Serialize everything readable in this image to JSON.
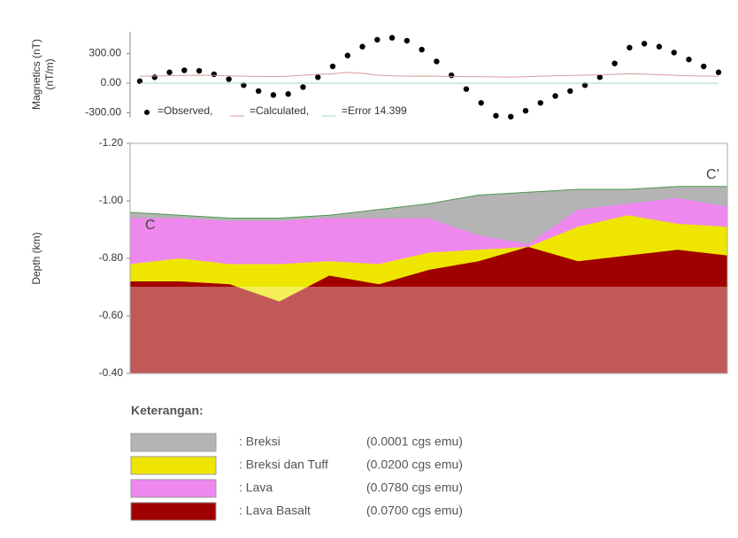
{
  "chart_data": [
    {
      "type": "line",
      "y_label_lines": [
        "Magnetics (nT)",
        "(nT/m)"
      ],
      "ylim": [
        -350,
        520
      ],
      "yticks": [
        {
          "value": 300,
          "label": "300.00"
        },
        {
          "value": 0,
          "label": "0.00"
        },
        {
          "value": -300,
          "label": "-300.00"
        }
      ],
      "series": [
        {
          "name": "=Observed,",
          "mode": "markers",
          "color": "#000000",
          "values": [
            20,
            60,
            110,
            130,
            125,
            90,
            40,
            -20,
            -80,
            -120,
            -110,
            -40,
            60,
            170,
            280,
            370,
            440,
            460,
            430,
            340,
            220,
            80,
            -60,
            -200,
            -330,
            -340,
            -280,
            -200,
            -130,
            -80,
            -20,
            60,
            200,
            360,
            400,
            370,
            310,
            240,
            170,
            110
          ]
        },
        {
          "name": "=Calculated,",
          "mode": "line",
          "color": "#d99a9a",
          "values": [
            70,
            72,
            75,
            78,
            80,
            78,
            74,
            70,
            68,
            66,
            70,
            80,
            90,
            95,
            110,
            100,
            80,
            75,
            70,
            72,
            70,
            68,
            66,
            65,
            64,
            62,
            65,
            70,
            75,
            78,
            80,
            85,
            90,
            95,
            92,
            85,
            80,
            75,
            72,
            70
          ]
        },
        {
          "name": "=Error 14.399",
          "mode": "line",
          "color": "#9fd6d6",
          "values": [
            0,
            0,
            0,
            0,
            0,
            0,
            0,
            0,
            0,
            0,
            0,
            0,
            0,
            0,
            0,
            0,
            0,
            0,
            0,
            0,
            0,
            0,
            0,
            0,
            0,
            0,
            0,
            0,
            0,
            0,
            0,
            0,
            0,
            0,
            0,
            0,
            0,
            0,
            0,
            0
          ]
        }
      ]
    },
    {
      "type": "area",
      "y_label": "Depth (km)",
      "ylim": [
        -1.2,
        -0.4
      ],
      "yticks": [
        {
          "value": -1.2,
          "label": "-1.20"
        },
        {
          "value": -1.0,
          "label": "-1.00"
        },
        {
          "value": -0.8,
          "label": "-0.80"
        },
        {
          "value": -0.6,
          "label": "-0.60"
        },
        {
          "value": -0.4,
          "label": "-0.40"
        }
      ],
      "annotations": [
        "C",
        "C’"
      ],
      "legend_title": "Keterangan:",
      "series": [
        {
          "name": ": Breksi",
          "note": "(0.0001 cgs emu)",
          "color": "#b4b4b4",
          "values": [
            -0.96,
            -0.95,
            -0.94,
            -0.94,
            -0.95,
            -0.97,
            -0.99,
            -1.02,
            -1.03,
            -1.04,
            -1.04,
            -1.05,
            -1.05
          ]
        },
        {
          "name": ": Lava",
          "note": "(0.0780 cgs emu)",
          "color": "#ee88ee",
          "values": [
            -0.94,
            -0.94,
            -0.93,
            -0.93,
            -0.94,
            -0.94,
            -0.94,
            -0.88,
            -0.85,
            -0.97,
            -0.99,
            -1.01,
            -0.98
          ]
        },
        {
          "name": ": Breksi dan Tuff",
          "note": "(0.0200 cgs emu)",
          "color": "#eee600",
          "values": [
            -0.78,
            -0.8,
            -0.78,
            -0.78,
            -0.79,
            -0.78,
            -0.82,
            -0.83,
            -0.84,
            -0.91,
            -0.95,
            -0.92,
            -0.91
          ]
        },
        {
          "name": ": Lava Basalt",
          "note": "(0.0700 cgs emu)",
          "color": "#a00000",
          "values": [
            -0.72,
            -0.72,
            -0.71,
            -0.65,
            -0.74,
            -0.71,
            -0.76,
            -0.79,
            -0.84,
            -0.79,
            -0.81,
            -0.83,
            -0.81
          ]
        }
      ],
      "legend_order": [
        0,
        2,
        1,
        3
      ]
    }
  ]
}
